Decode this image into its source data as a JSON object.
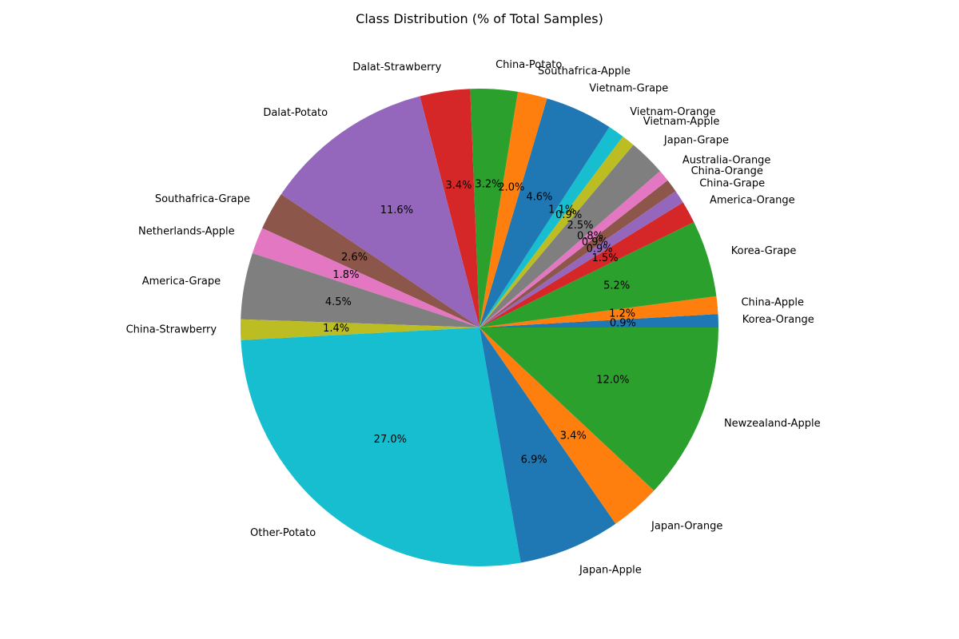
{
  "chart_data": {
    "type": "pie",
    "title": "Class Distribution (% of Total Samples)",
    "start_angle_deg": 0,
    "direction": "counterclockwise",
    "slices": [
      {
        "label": "Korea-Orange",
        "value": 0.9,
        "pct_text": "0.9%",
        "color": "#1f77b4"
      },
      {
        "label": "China-Apple",
        "value": 1.2,
        "pct_text": "1.2%",
        "color": "#ff7f0e"
      },
      {
        "label": "Korea-Grape",
        "value": 5.2,
        "pct_text": "5.2%",
        "color": "#2ca02c"
      },
      {
        "label": "America-Orange",
        "value": 1.5,
        "pct_text": "1.5%",
        "color": "#d62728"
      },
      {
        "label": "China-Grape",
        "value": 0.9,
        "pct_text": "0.9%",
        "color": "#9467bd"
      },
      {
        "label": "China-Orange",
        "value": 0.9,
        "pct_text": "0.9%",
        "color": "#8c564b"
      },
      {
        "label": "Australia-Orange",
        "value": 0.8,
        "pct_text": "0.8%",
        "color": "#e377c2"
      },
      {
        "label": "Japan-Grape",
        "value": 2.5,
        "pct_text": "2.5%",
        "color": "#7f7f7f"
      },
      {
        "label": "Vietnam-Apple",
        "value": 0.9,
        "pct_text": "0.9%",
        "color": "#bcbd22"
      },
      {
        "label": "Vietnam-Orange",
        "value": 1.1,
        "pct_text": "1.1%",
        "color": "#17becf"
      },
      {
        "label": "Vietnam-Grape",
        "value": 4.6,
        "pct_text": "4.6%",
        "color": "#1f77b4"
      },
      {
        "label": "Southafrica-Apple",
        "value": 2.0,
        "pct_text": "2.0%",
        "color": "#ff7f0e"
      },
      {
        "label": "China-Potato",
        "value": 3.2,
        "pct_text": "3.2%",
        "color": "#2ca02c"
      },
      {
        "label": "Dalat-Strawberry",
        "value": 3.4,
        "pct_text": "3.4%",
        "color": "#d62728"
      },
      {
        "label": "Dalat-Potato",
        "value": 11.6,
        "pct_text": "11.6%",
        "color": "#9467bd"
      },
      {
        "label": "Southafrica-Grape",
        "value": 2.6,
        "pct_text": "2.6%",
        "color": "#8c564b"
      },
      {
        "label": "Netherlands-Apple",
        "value": 1.8,
        "pct_text": "1.8%",
        "color": "#e377c2"
      },
      {
        "label": "America-Grape",
        "value": 4.5,
        "pct_text": "4.5%",
        "color": "#7f7f7f"
      },
      {
        "label": "China-Strawberry",
        "value": 1.4,
        "pct_text": "1.4%",
        "color": "#bcbd22"
      },
      {
        "label": "Other-Potato",
        "value": 27.0,
        "pct_text": "27.0%",
        "color": "#17becf"
      },
      {
        "label": "Japan-Apple",
        "value": 6.9,
        "pct_text": "6.9%",
        "color": "#1f77b4"
      },
      {
        "label": "Japan-Orange",
        "value": 3.4,
        "pct_text": "3.4%",
        "color": "#ff7f0e"
      },
      {
        "label": "Newzealand-Apple",
        "value": 12.0,
        "pct_text": "12.0%",
        "color": "#2ca02c"
      }
    ]
  }
}
